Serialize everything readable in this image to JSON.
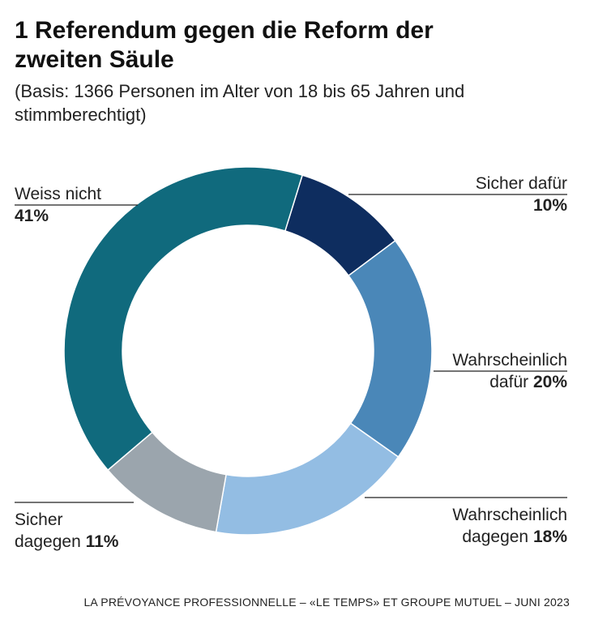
{
  "chart_data": {
    "type": "donut",
    "title": "1 Referendum gegen die Reform der zweiten Säule",
    "subtitle": "(Basis: 1366 Personen im Alter von 18 bis 65 Jahren und stimmberechtigt)",
    "categories": [
      "Sicher dafür",
      "Wahrscheinlich dafür",
      "Wahrscheinlich dagegen",
      "Sicher dagegen",
      "Weiss nicht"
    ],
    "values": [
      10,
      20,
      18,
      11,
      41
    ],
    "value_labels": [
      "10%",
      "20%",
      "18%",
      "11%",
      "41%"
    ],
    "colors": [
      "#0e2d5f",
      "#4a87b8",
      "#93bde3",
      "#9ba5ad",
      "#106a7d"
    ],
    "source": "LA PRÉVOYANCE PROFESSIONNELLE – «LE TEMPS» ET GROUPE MUTUEL – JUNI 2023"
  }
}
